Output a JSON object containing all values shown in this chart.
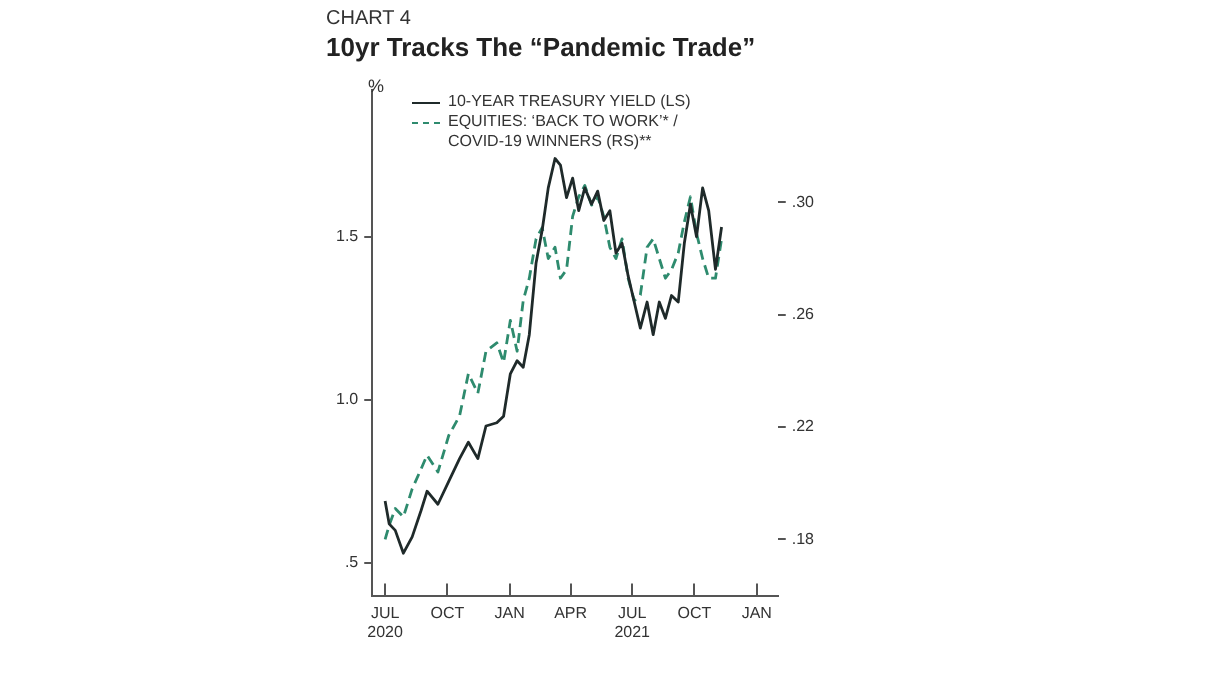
{
  "chart_data": {
    "type": "line",
    "subtitle": "CHART 4",
    "title": "10yr Tracks The “Pandemic Trade”",
    "ylabel": "%",
    "legend": "top left",
    "line_style": "solid",
    "marker": "none",
    "x": [
      "2020-07-01",
      "2020-07-07",
      "2020-07-16",
      "2020-07-28",
      "2020-08-10",
      "2020-08-23",
      "2020-09-01",
      "2020-09-17",
      "2020-10-03",
      "2020-10-19",
      "2020-11-01",
      "2020-11-15",
      "2020-11-27",
      "2020-12-13",
      "2020-12-23",
      "2021-01-02",
      "2021-01-12",
      "2021-01-21",
      "2021-01-30",
      "2021-02-09",
      "2021-02-18",
      "2021-02-27",
      "2021-03-09",
      "2021-03-17",
      "2021-03-26",
      "2021-04-04",
      "2021-04-13",
      "2021-04-22",
      "2021-05-02",
      "2021-05-11",
      "2021-05-20",
      "2021-05-29",
      "2021-06-07",
      "2021-06-16",
      "2021-06-25",
      "2021-07-04",
      "2021-07-13",
      "2021-07-23",
      "2021-08-01",
      "2021-08-10",
      "2021-08-19",
      "2021-08-28",
      "2021-09-07",
      "2021-09-16",
      "2021-09-25",
      "2021-10-04",
      "2021-10-13",
      "2021-10-22",
      "2021-11-01",
      "2021-11-10"
    ],
    "series": [
      {
        "name": "10-YEAR TREASURY YIELD (LS)",
        "color": "#1f2a2a",
        "values": [
          0.69,
          0.62,
          0.6,
          0.53,
          0.58,
          0.66,
          0.72,
          0.68,
          0.75,
          0.82,
          0.87,
          0.82,
          0.92,
          0.93,
          0.95,
          1.08,
          1.12,
          1.1,
          1.2,
          1.42,
          1.52,
          1.65,
          1.74,
          1.72,
          1.62,
          1.68,
          1.58,
          1.65,
          1.6,
          1.64,
          1.55,
          1.58,
          1.45,
          1.48,
          1.38,
          1.3,
          1.22,
          1.3,
          1.2,
          1.3,
          1.25,
          1.32,
          1.3,
          1.48,
          1.6,
          1.5,
          1.65,
          1.58,
          1.4,
          1.53
        ]
      },
      {
        "name": "EQUITIES: ‘BACK TO WORK’* / COVID-19 WINNERS (RS)**",
        "color": "#2e8b6e",
        "axis": "y2",
        "line_style": "dashed",
        "values": [
          0.18,
          0.185,
          0.191,
          0.188,
          0.198,
          0.205,
          0.21,
          0.204,
          0.217,
          0.224,
          0.239,
          0.232,
          0.247,
          0.25,
          0.243,
          0.258,
          0.247,
          0.265,
          0.273,
          0.287,
          0.291,
          0.28,
          0.284,
          0.273,
          0.276,
          0.295,
          0.302,
          0.306,
          0.299,
          0.302,
          0.295,
          0.284,
          0.28,
          0.287,
          0.273,
          0.265,
          0.267,
          0.284,
          0.287,
          0.28,
          0.273,
          0.276,
          0.282,
          0.293,
          0.302,
          0.289,
          0.28,
          0.273,
          0.273,
          0.287
        ]
      }
    ],
    "xlim": [
      "2020-06-12",
      "2022-02-01"
    ],
    "xticks": [
      {
        "value": "2020-07",
        "label": "JUL\n2020"
      },
      {
        "value": "2020-10",
        "label": "OCT"
      },
      {
        "value": "2021-01",
        "label": "JAN"
      },
      {
        "value": "2021-04",
        "label": "APR"
      },
      {
        "value": "2021-07",
        "label": "JUL\n2021"
      },
      {
        "value": "2021-10",
        "label": "OCT"
      },
      {
        "value": "2022-01",
        "label": "JAN"
      }
    ],
    "ylim": [
      0.4,
      1.95
    ],
    "yticks": [
      {
        "value": 0.5,
        "label": ".5"
      },
      {
        "value": 1,
        "label": "1.0"
      },
      1.5
    ],
    "y2lim": [
      0.16,
      0.34
    ],
    "y2ticks": [
      {
        "value": 0.18,
        "label": ".18"
      },
      {
        "value": 0.22,
        "label": ".22"
      },
      {
        "value": 0.26,
        "label": ".26"
      },
      {
        "value": 0.3,
        "label": ".30"
      }
    ],
    "grid": false
  }
}
